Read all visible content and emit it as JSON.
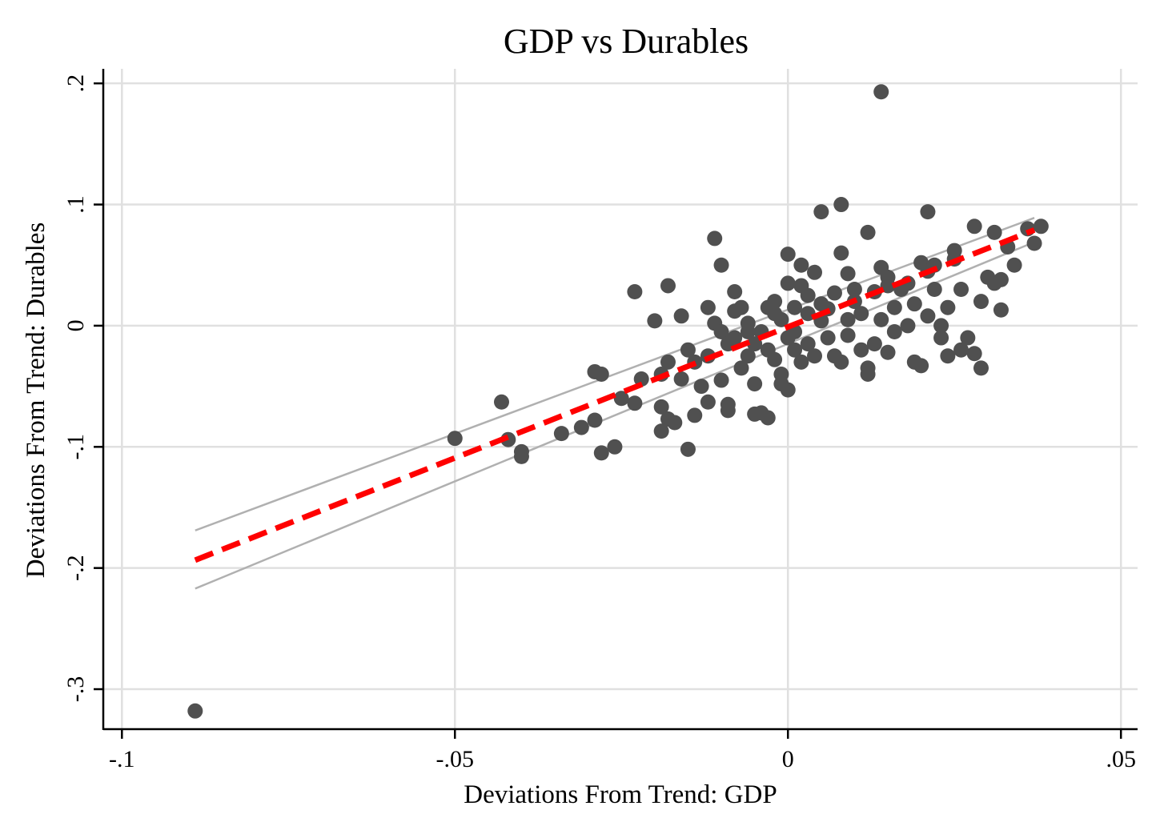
{
  "chart_data": {
    "type": "scatter",
    "title": "GDP vs Durables",
    "xlabel": "Deviations From Trend: GDP",
    "ylabel": "Deviations From Trend: Durables",
    "xlim": [
      -0.1028,
      0.0525
    ],
    "ylim": [
      -0.333,
      0.212
    ],
    "x_ticks": [
      -0.1,
      -0.05,
      0,
      0.05
    ],
    "x_tick_labels": [
      "-.1",
      "-.05",
      "0",
      ".05"
    ],
    "y_ticks": [
      -0.3,
      -0.2,
      -0.1,
      0,
      0.1,
      0.2
    ],
    "y_tick_labels": [
      "-.3",
      "-.2",
      "-.1",
      "0",
      ".1",
      ".2"
    ],
    "grid": true,
    "colors": {
      "points": "#505050",
      "fit_line": "#ff0000",
      "ci_band": "#b0b0b0",
      "grid": "#e0e0e0",
      "axis": "#000000"
    },
    "fit": {
      "x": [
        -0.089,
        0.037
      ],
      "y": [
        -0.1935,
        0.079
      ]
    },
    "ci_upper": {
      "x": [
        -0.089,
        0.037
      ],
      "y": [
        -0.169,
        0.089
      ]
    },
    "ci_lower": {
      "x": [
        -0.089,
        0.037
      ],
      "y": [
        -0.217,
        0.069
      ]
    },
    "points": [
      [
        -0.089,
        -0.318
      ],
      [
        0.014,
        0.193
      ],
      [
        -0.05,
        -0.093
      ],
      [
        -0.043,
        -0.063
      ],
      [
        -0.042,
        -0.094
      ],
      [
        -0.04,
        -0.104
      ],
      [
        -0.04,
        -0.108
      ],
      [
        -0.034,
        -0.089
      ],
      [
        -0.031,
        -0.084
      ],
      [
        -0.029,
        -0.038
      ],
      [
        -0.028,
        -0.04
      ],
      [
        -0.029,
        -0.078
      ],
      [
        -0.028,
        -0.105
      ],
      [
        -0.026,
        -0.1
      ],
      [
        -0.025,
        -0.06
      ],
      [
        -0.023,
        -0.064
      ],
      [
        -0.022,
        -0.044
      ],
      [
        -0.023,
        0.028
      ],
      [
        -0.02,
        0.004
      ],
      [
        -0.019,
        -0.04
      ],
      [
        -0.019,
        -0.087
      ],
      [
        -0.019,
        -0.067
      ],
      [
        -0.018,
        -0.077
      ],
      [
        -0.018,
        0.033
      ],
      [
        -0.018,
        -0.03
      ],
      [
        -0.017,
        -0.08
      ],
      [
        -0.016,
        -0.044
      ],
      [
        -0.016,
        0.008
      ],
      [
        -0.015,
        -0.102
      ],
      [
        -0.015,
        -0.02
      ],
      [
        -0.014,
        -0.074
      ],
      [
        -0.014,
        -0.03
      ],
      [
        -0.013,
        -0.05
      ],
      [
        -0.012,
        -0.063
      ],
      [
        -0.012,
        0.015
      ],
      [
        -0.012,
        -0.025
      ],
      [
        -0.011,
        0.002
      ],
      [
        -0.011,
        0.072
      ],
      [
        -0.01,
        -0.045
      ],
      [
        -0.01,
        -0.005
      ],
      [
        -0.01,
        0.05
      ],
      [
        -0.009,
        -0.07
      ],
      [
        -0.009,
        -0.065
      ],
      [
        -0.009,
        -0.015
      ],
      [
        -0.008,
        0.028
      ],
      [
        -0.008,
        -0.01
      ],
      [
        -0.008,
        0.012
      ],
      [
        -0.007,
        -0.035
      ],
      [
        -0.007,
        0.015
      ],
      [
        -0.006,
        -0.025
      ],
      [
        -0.006,
        0.002
      ],
      [
        -0.006,
        -0.005
      ],
      [
        -0.005,
        -0.048
      ],
      [
        -0.005,
        -0.073
      ],
      [
        -0.005,
        -0.015
      ],
      [
        -0.004,
        -0.072
      ],
      [
        -0.004,
        -0.005
      ],
      [
        -0.003,
        0.015
      ],
      [
        -0.003,
        -0.02
      ],
      [
        -0.003,
        -0.076
      ],
      [
        -0.002,
        0.01
      ],
      [
        -0.002,
        -0.028
      ],
      [
        -0.002,
        0.02
      ],
      [
        -0.001,
        -0.04
      ],
      [
        -0.001,
        0.005
      ],
      [
        -0.001,
        -0.048
      ],
      [
        0.0,
        -0.053
      ],
      [
        0.0,
        -0.01
      ],
      [
        0.0,
        0.059
      ],
      [
        0.0,
        0.035
      ],
      [
        0.001,
        -0.02
      ],
      [
        0.001,
        0.015
      ],
      [
        0.001,
        -0.005
      ],
      [
        0.002,
        0.05
      ],
      [
        0.002,
        0.033
      ],
      [
        0.002,
        -0.03
      ],
      [
        0.003,
        -0.015
      ],
      [
        0.003,
        0.01
      ],
      [
        0.003,
        0.025
      ],
      [
        0.004,
        0.044
      ],
      [
        0.004,
        -0.025
      ],
      [
        0.005,
        0.094
      ],
      [
        0.005,
        0.004
      ],
      [
        0.005,
        0.018
      ],
      [
        0.006,
        -0.01
      ],
      [
        0.006,
        0.014
      ],
      [
        0.007,
        0.027
      ],
      [
        0.007,
        -0.025
      ],
      [
        0.008,
        0.06
      ],
      [
        0.008,
        0.1
      ],
      [
        0.008,
        -0.03
      ],
      [
        0.009,
        0.043
      ],
      [
        0.009,
        0.005
      ],
      [
        0.009,
        -0.008
      ],
      [
        0.01,
        0.02
      ],
      [
        0.01,
        0.03
      ],
      [
        0.011,
        -0.02
      ],
      [
        0.011,
        0.01
      ],
      [
        0.012,
        0.077
      ],
      [
        0.012,
        -0.035
      ],
      [
        0.012,
        -0.04
      ],
      [
        0.013,
        0.028
      ],
      [
        0.013,
        -0.015
      ],
      [
        0.014,
        0.005
      ],
      [
        0.014,
        0.048
      ],
      [
        0.015,
        -0.022
      ],
      [
        0.015,
        0.033
      ],
      [
        0.015,
        0.04
      ],
      [
        0.016,
        -0.005
      ],
      [
        0.016,
        0.015
      ],
      [
        0.017,
        0.03
      ],
      [
        0.018,
        0.035
      ],
      [
        0.018,
        0.0
      ],
      [
        0.019,
        -0.03
      ],
      [
        0.019,
        0.018
      ],
      [
        0.02,
        0.052
      ],
      [
        0.02,
        -0.033
      ],
      [
        0.021,
        0.045
      ],
      [
        0.021,
        0.008
      ],
      [
        0.021,
        0.094
      ],
      [
        0.022,
        0.03
      ],
      [
        0.022,
        0.05
      ],
      [
        0.023,
        -0.01
      ],
      [
        0.023,
        0.0
      ],
      [
        0.024,
        -0.025
      ],
      [
        0.024,
        0.015
      ],
      [
        0.025,
        0.055
      ],
      [
        0.025,
        0.062
      ],
      [
        0.026,
        0.03
      ],
      [
        0.026,
        -0.02
      ],
      [
        0.027,
        -0.01
      ],
      [
        0.028,
        -0.023
      ],
      [
        0.028,
        0.082
      ],
      [
        0.029,
        0.02
      ],
      [
        0.029,
        -0.035
      ],
      [
        0.03,
        0.04
      ],
      [
        0.031,
        0.035
      ],
      [
        0.031,
        0.077
      ],
      [
        0.032,
        0.038
      ],
      [
        0.032,
        0.013
      ],
      [
        0.033,
        0.065
      ],
      [
        0.034,
        0.05
      ],
      [
        0.036,
        0.08
      ],
      [
        0.037,
        0.068
      ],
      [
        0.038,
        0.082
      ]
    ]
  }
}
